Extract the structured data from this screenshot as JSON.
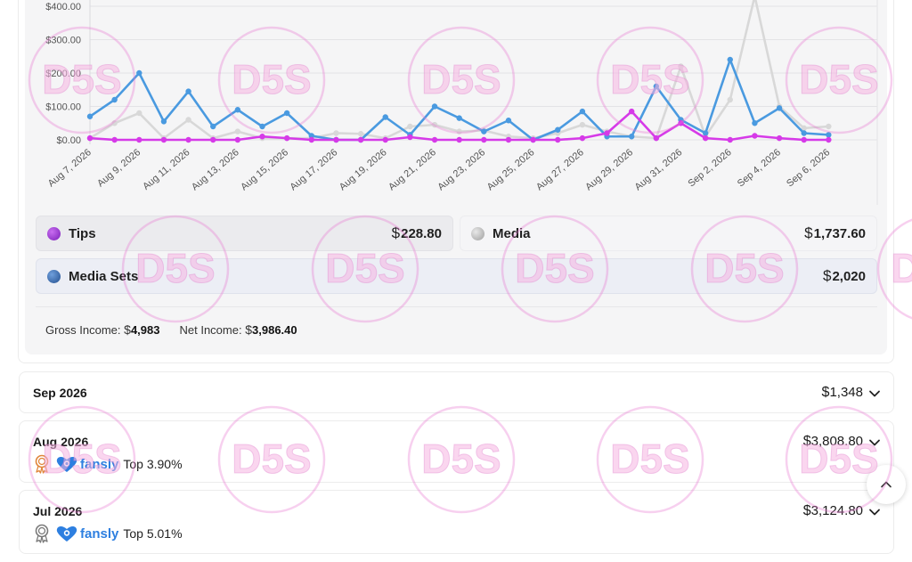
{
  "chart_data": {
    "type": "line",
    "y_tick_labels": [
      "$0.00",
      "$100.00",
      "$200.00",
      "$300.00",
      "$400.00"
    ],
    "y_ticks": [
      0,
      100,
      200,
      300,
      400
    ],
    "x": [
      "Aug 7, 2026",
      "Aug 8, 2026",
      "Aug 9, 2026",
      "Aug 10, 2026",
      "Aug 11, 2026",
      "Aug 12, 2026",
      "Aug 13, 2026",
      "Aug 14, 2026",
      "Aug 15, 2026",
      "Aug 16, 2026",
      "Aug 17, 2026",
      "Aug 18, 2026",
      "Aug 19, 2026",
      "Aug 20, 2026",
      "Aug 21, 2026",
      "Aug 22, 2026",
      "Aug 23, 2026",
      "Aug 24, 2026",
      "Aug 25, 2026",
      "Aug 26, 2026",
      "Aug 27, 2026",
      "Aug 28, 2026",
      "Aug 29, 2026",
      "Aug 30, 2026",
      "Aug 31, 2026",
      "Sep 1, 2026",
      "Sep 2, 2026",
      "Sep 3, 2026",
      "Sep 4, 2026",
      "Sep 5, 2026",
      "Sep 6, 2026",
      "Sep 7, 2026"
    ],
    "x_tick_labels": [
      "Aug 7, 2026",
      "Aug 9, 2026",
      "Aug 11, 2026",
      "Aug 13, 2026",
      "Aug 15, 2026",
      "Aug 17, 2026",
      "Aug 19, 2026",
      "Aug 21, 2026",
      "Aug 23, 2026",
      "Aug 25, 2026",
      "Aug 27, 2026",
      "Aug 29, 2026",
      "Aug 31, 2026",
      "Sep 2, 2026",
      "Sep 4, 2026",
      "Sep 6, 2026"
    ],
    "series": [
      {
        "name": "Media Sets",
        "color": "#4a9ae0",
        "values": [
          70,
          120,
          200,
          55,
          145,
          40,
          90,
          40,
          80,
          12,
          0,
          0,
          68,
          15,
          100,
          65,
          25,
          58,
          0,
          30,
          85,
          10,
          10,
          160,
          60,
          20,
          240,
          50,
          95,
          20,
          15,
          null
        ]
      },
      {
        "name": "Media",
        "color": "#d8d8d8",
        "values": [
          5,
          50,
          80,
          5,
          60,
          5,
          25,
          5,
          5,
          5,
          20,
          18,
          5,
          40,
          45,
          25,
          28,
          10,
          5,
          20,
          45,
          25,
          10,
          5,
          220,
          10,
          120,
          430,
          100,
          35,
          40,
          null
        ]
      },
      {
        "name": "Tips",
        "color": "#d63ae8",
        "values": [
          5,
          0,
          0,
          0,
          0,
          0,
          0,
          10,
          5,
          0,
          0,
          0,
          0,
          8,
          0,
          0,
          0,
          0,
          0,
          0,
          5,
          20,
          85,
          5,
          50,
          5,
          0,
          12,
          5,
          0,
          0,
          null
        ]
      }
    ]
  },
  "legend": {
    "tips": {
      "label": "Tips",
      "currency": "$",
      "amount": "228.80",
      "color": "#9b2fd4"
    },
    "media": {
      "label": "Media",
      "currency": "$",
      "amount": "1,737.60",
      "color": "#c4c4c4"
    },
    "media_sets": {
      "label": "Media Sets",
      "currency": "$",
      "amount": "2,020",
      "color": "#3d6fb0"
    }
  },
  "income": {
    "gross_label": "Gross Income:",
    "gross_currency": "$",
    "gross_value": "4,983",
    "net_label": "Net Income:",
    "net_currency": "$",
    "net_value": "3,986.40"
  },
  "months": [
    {
      "label": "Sep 2026",
      "currency": "$",
      "total": "1,348"
    },
    {
      "label": "Aug 2026",
      "currency": "$",
      "total": "3,808.80",
      "brand": "fansly",
      "rank": "Top 3.90%"
    },
    {
      "label": "Jul 2026",
      "currency": "$",
      "total": "3,124.80",
      "brand": "fansly",
      "rank": "Top 5.01%"
    }
  ],
  "watermark": {
    "text": "D5S"
  },
  "icons": {
    "chevron": "chevron-down-icon",
    "scroll_top": "chevron-up-icon",
    "award_gold": "award-ribbon-icon",
    "award_silver": "award-ribbon-icon",
    "fansly_logo": "fansly-heart-logo"
  }
}
